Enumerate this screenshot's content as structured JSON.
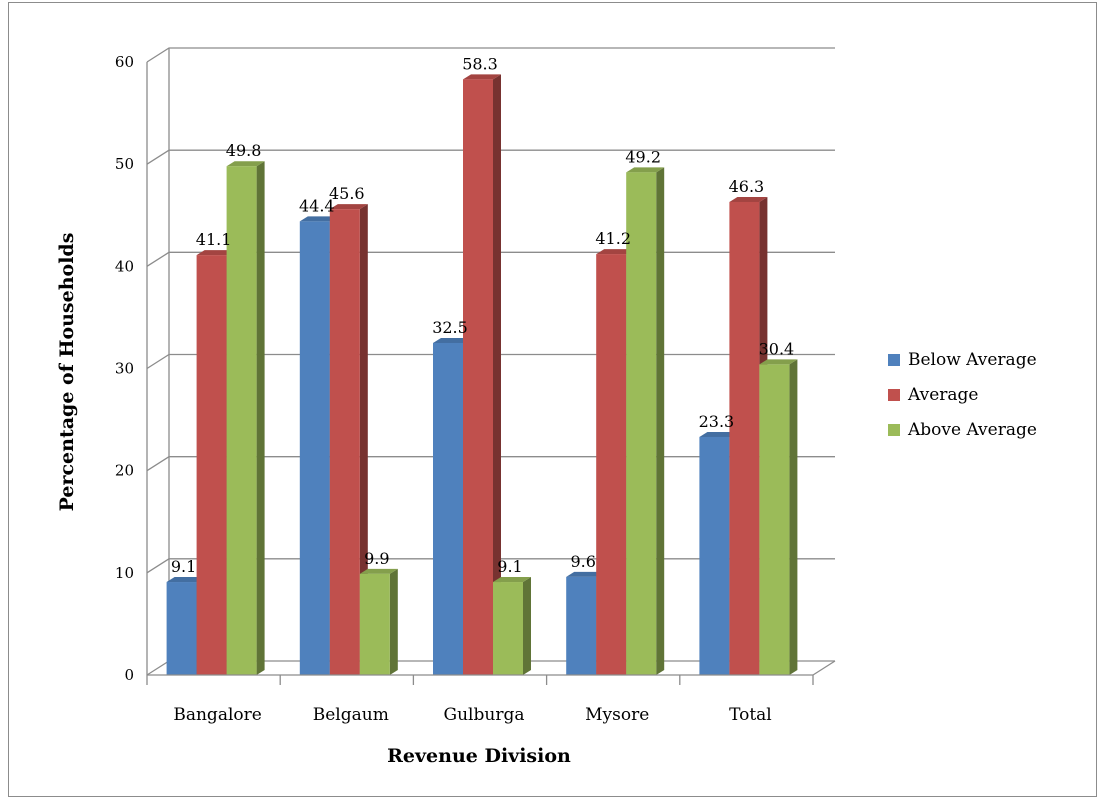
{
  "chart_data": {
    "type": "bar",
    "title": "",
    "xlabel": "Revenue Division",
    "ylabel": "Percentage of Households",
    "ylim": [
      0,
      60
    ],
    "yticks": [
      "0",
      "10",
      "20",
      "30",
      "40",
      "50",
      "60"
    ],
    "categories": [
      "Bangalore",
      "Belgaum",
      "Gulburga",
      "Mysore",
      "Total"
    ],
    "series": [
      {
        "name": "Below Average",
        "color": "#4F81BD",
        "values": [
          9.1,
          44.4,
          32.5,
          9.6,
          23.3
        ],
        "labels": [
          "9.1",
          "44.4",
          "32.5",
          "9.6",
          "23.3"
        ]
      },
      {
        "name": "Average",
        "color": "#C0504D",
        "values": [
          41.1,
          45.6,
          58.3,
          41.2,
          46.3
        ],
        "labels": [
          "41.1",
          "45.6",
          "58.3",
          "41.2",
          "46.3"
        ]
      },
      {
        "name": "Above Average",
        "color": "#9BBB59",
        "values": [
          49.8,
          9.9,
          9.1,
          49.2,
          30.4
        ],
        "labels": [
          "49.8",
          "9.9",
          "9.1",
          "49.2",
          "30.4"
        ]
      }
    ],
    "legend_position": "right",
    "grid": true,
    "style": "3d-clustered-column"
  }
}
